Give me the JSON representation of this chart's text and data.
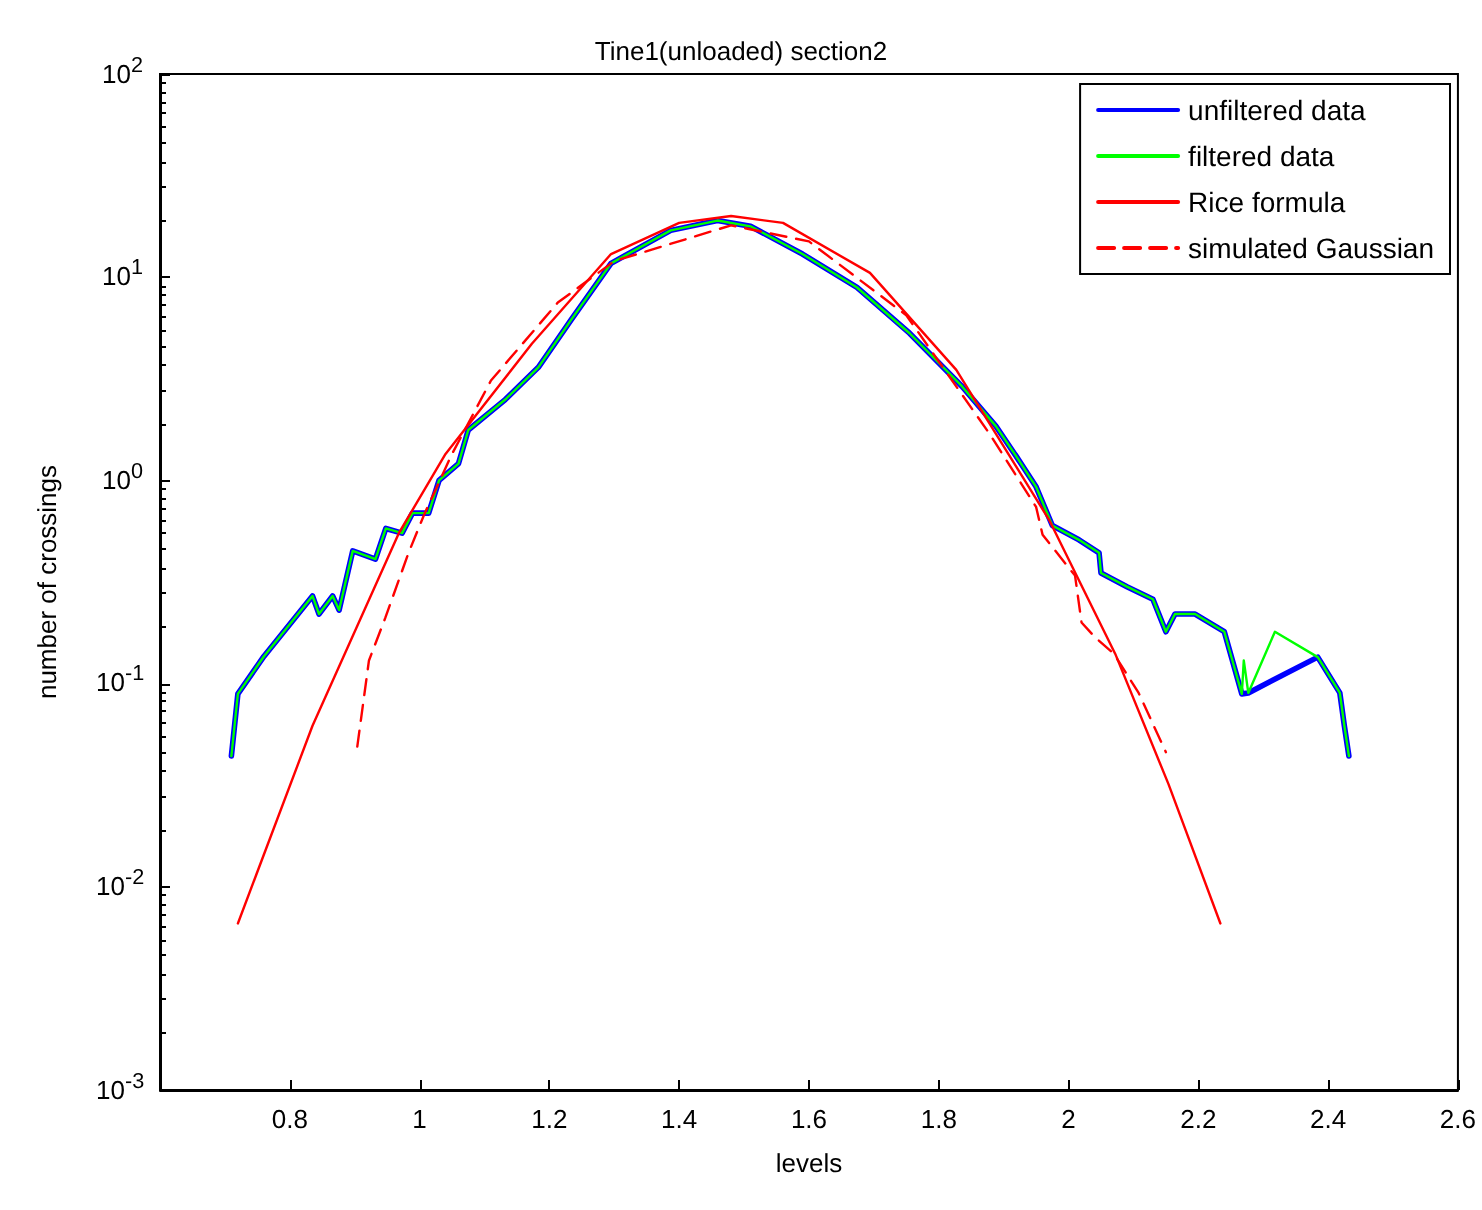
{
  "chart_data": {
    "type": "line",
    "title": "Tine1(unloaded) section2",
    "xlabel": "levels",
    "ylabel": "number of crossings",
    "xlim": [
      0.6,
      2.6
    ],
    "xticks": [
      0.8,
      1,
      1.2,
      1.4,
      1.6,
      1.8,
      2,
      2.2,
      2.4,
      2.6
    ],
    "ylim": [
      0.001,
      100
    ],
    "yticks": [
      {
        "value": 0.001,
        "label": "10$^{-3}$"
      },
      {
        "value": 0.01,
        "label": "10$^{-2}$"
      },
      {
        "value": 0.1,
        "label": "10$^{-1}$"
      },
      {
        "value": 1,
        "label": "10$^{0}$"
      },
      {
        "value": 10,
        "label": "10$^{1}$"
      },
      {
        "value": 100,
        "label": "10$^{2}$"
      }
    ],
    "log": "y",
    "grid": false,
    "legend": "top right",
    "marker": "none",
    "series": [
      {
        "name": "unfiltered data",
        "color": "#0000ff",
        "line_style": "solid",
        "x": [
          0.71,
          0.72,
          0.76,
          0.835,
          0.845,
          0.866,
          0.876,
          0.897,
          0.932,
          0.948,
          0.973,
          0.989,
          1.014,
          1.03,
          1.06,
          1.075,
          1.132,
          1.183,
          1.234,
          1.295,
          1.387,
          1.459,
          1.51,
          1.59,
          1.674,
          1.755,
          1.836,
          1.888,
          1.919,
          1.95,
          1.975,
          2.016,
          2.047,
          2.05,
          2.09,
          2.13,
          2.15,
          2.164,
          2.195,
          2.24,
          2.267,
          2.277,
          2.384,
          2.418,
          2.425,
          2.432
        ],
        "values": [
          0.044,
          0.089,
          0.136,
          0.27,
          0.22,
          0.27,
          0.23,
          0.45,
          0.41,
          0.58,
          0.55,
          0.69,
          0.69,
          1.0,
          1.21,
          1.77,
          2.5,
          3.6,
          6.2,
          11.7,
          17,
          19,
          17.8,
          13,
          8.9,
          5.3,
          2.9,
          1.85,
          1.32,
          0.93,
          0.6,
          0.51,
          0.44,
          0.35,
          0.3,
          0.26,
          0.18,
          0.22,
          0.22,
          0.18,
          0.089,
          0.09,
          0.135,
          0.09,
          0.062,
          0.044
        ]
      },
      {
        "name": "filtered data",
        "color": "#00ff00",
        "line_style": "solid",
        "x": [
          0.71,
          0.72,
          0.76,
          0.835,
          0.845,
          0.866,
          0.876,
          0.897,
          0.932,
          0.948,
          0.973,
          0.989,
          1.014,
          1.03,
          1.06,
          1.075,
          1.132,
          1.183,
          1.234,
          1.295,
          1.387,
          1.459,
          1.51,
          1.59,
          1.674,
          1.755,
          1.836,
          1.888,
          1.919,
          1.95,
          1.975,
          2.016,
          2.047,
          2.05,
          2.09,
          2.13,
          2.15,
          2.164,
          2.195,
          2.24,
          2.267,
          2.27,
          2.277,
          2.318,
          2.384,
          2.418,
          2.425,
          2.432
        ],
        "values": [
          0.044,
          0.089,
          0.136,
          0.27,
          0.22,
          0.27,
          0.23,
          0.45,
          0.41,
          0.58,
          0.55,
          0.69,
          0.69,
          1.0,
          1.21,
          1.77,
          2.5,
          3.6,
          6.2,
          11.7,
          17,
          19,
          17.8,
          13,
          8.9,
          5.3,
          2.9,
          1.85,
          1.32,
          0.93,
          0.6,
          0.51,
          0.44,
          0.35,
          0.3,
          0.26,
          0.18,
          0.22,
          0.22,
          0.18,
          0.089,
          0.13,
          0.09,
          0.18,
          0.135,
          0.09,
          0.062,
          0.044
        ]
      },
      {
        "name": "Rice formula",
        "color": "#ff0000",
        "line_style": "solid",
        "x": [
          0.72,
          0.835,
          0.968,
          1.04,
          1.173,
          1.295,
          1.4,
          1.48,
          1.56,
          1.694,
          1.827,
          1.97,
          2.072,
          2.154,
          2.234
        ],
        "values": [
          0.0066,
          0.062,
          0.55,
          1.35,
          4.7,
          13,
          18.5,
          20,
          18.5,
          10.5,
          3.5,
          0.64,
          0.14,
          0.032,
          0.0066
        ]
      },
      {
        "name": "simulated Gaussian",
        "color": "#ff0000",
        "line_style": "dashed",
        "x": [
          0.904,
          0.922,
          0.947,
          0.983,
          1.008,
          1.05,
          1.11,
          1.213,
          1.3,
          1.48,
          1.6,
          1.75,
          1.878,
          1.95,
          1.96,
          2.01,
          2.02,
          2.04,
          2.07,
          2.108,
          2.15
        ],
        "values": [
          0.049,
          0.13,
          0.21,
          0.44,
          0.69,
          1.35,
          3.1,
          7.5,
          12,
          18,
          15,
          6.5,
          1.7,
          0.74,
          0.54,
          0.34,
          0.2,
          0.17,
          0.14,
          0.09,
          0.046
        ]
      }
    ]
  }
}
